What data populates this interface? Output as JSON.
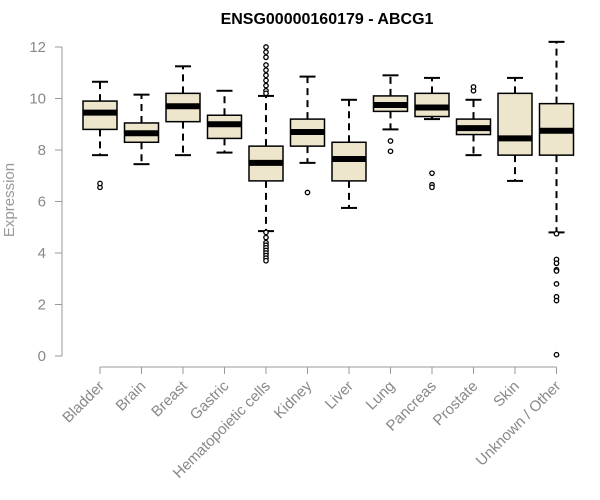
{
  "chart_data": {
    "type": "boxplot",
    "title": "ENSG00000160179 - ABCG1",
    "xlabel": "",
    "ylabel": "Expression",
    "ylim": [
      0,
      12
    ],
    "yticks": [
      0,
      2,
      4,
      6,
      8,
      10,
      12
    ],
    "colors": {
      "box_fill": "#ede6cd",
      "box_stroke": "#000000",
      "axis": "#999999",
      "tick_text": "#888888"
    },
    "categories": [
      "Bladder",
      "Brain",
      "Breast",
      "Gastric",
      "Hematopoietic cells",
      "Kidney",
      "Liver",
      "Lung",
      "Pancreas",
      "Prostate",
      "Skin",
      "Unknown / Other"
    ],
    "boxes": [
      {
        "name": "Bladder",
        "whisker_low": 7.8,
        "q1": 8.8,
        "median": 9.45,
        "q3": 9.9,
        "whisker_high": 10.65,
        "outliers": [
          6.55,
          6.7
        ]
      },
      {
        "name": "Brain",
        "whisker_low": 7.45,
        "q1": 8.3,
        "median": 8.65,
        "q3": 9.05,
        "whisker_high": 10.15,
        "outliers": []
      },
      {
        "name": "Breast",
        "whisker_low": 7.8,
        "q1": 9.1,
        "median": 9.7,
        "q3": 10.2,
        "whisker_high": 11.25,
        "outliers": []
      },
      {
        "name": "Gastric",
        "whisker_low": 7.9,
        "q1": 8.45,
        "median": 9.0,
        "q3": 9.35,
        "whisker_high": 10.3,
        "outliers": []
      },
      {
        "name": "Hematopoietic cells",
        "whisker_low": 4.85,
        "q1": 6.8,
        "median": 7.5,
        "q3": 8.15,
        "whisker_high": 10.1,
        "outliers": [
          12.0,
          11.8,
          11.6,
          11.3,
          11.1,
          10.9,
          10.7,
          10.5,
          10.3,
          10.2,
          4.8,
          4.6,
          4.4,
          4.3,
          4.2,
          4.1,
          4.0,
          3.9,
          3.8,
          3.7
        ]
      },
      {
        "name": "Kidney",
        "whisker_low": 7.5,
        "q1": 8.15,
        "median": 8.7,
        "q3": 9.2,
        "whisker_high": 10.85,
        "outliers": [
          6.35
        ]
      },
      {
        "name": "Liver",
        "whisker_low": 5.75,
        "q1": 6.8,
        "median": 7.65,
        "q3": 8.3,
        "whisker_high": 9.95,
        "outliers": []
      },
      {
        "name": "Lung",
        "whisker_low": 8.8,
        "q1": 9.5,
        "median": 9.75,
        "q3": 10.1,
        "whisker_high": 10.9,
        "outliers": [
          8.35,
          7.95
        ]
      },
      {
        "name": "Pancreas",
        "whisker_low": 9.2,
        "q1": 9.3,
        "median": 9.65,
        "q3": 10.2,
        "whisker_high": 10.8,
        "outliers": [
          7.1,
          6.65,
          6.55
        ]
      },
      {
        "name": "Prostate",
        "whisker_low": 7.8,
        "q1": 8.6,
        "median": 8.85,
        "q3": 9.2,
        "whisker_high": 9.95,
        "outliers": [
          10.3,
          10.45
        ]
      },
      {
        "name": "Skin",
        "whisker_low": 6.8,
        "q1": 7.8,
        "median": 8.45,
        "q3": 10.2,
        "whisker_high": 10.8,
        "outliers": []
      },
      {
        "name": "Unknown / Other",
        "whisker_low": 4.8,
        "q1": 7.8,
        "median": 8.75,
        "q3": 9.8,
        "whisker_high": 12.2,
        "outliers": [
          4.75,
          3.75,
          3.6,
          3.35,
          3.3,
          2.8,
          2.3,
          2.15,
          0.05
        ]
      }
    ]
  }
}
